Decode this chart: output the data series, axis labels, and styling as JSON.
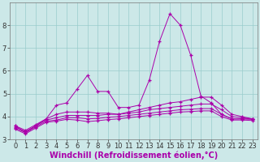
{
  "xlabel": "Windchill (Refroidissement éolien,°C)",
  "x": [
    0,
    1,
    2,
    3,
    4,
    5,
    6,
    7,
    8,
    9,
    10,
    11,
    12,
    13,
    14,
    15,
    16,
    17,
    18,
    19,
    20,
    21,
    22,
    23
  ],
  "series": [
    [
      3.6,
      3.3,
      3.6,
      3.9,
      4.5,
      4.6,
      5.2,
      5.8,
      5.1,
      5.1,
      4.4,
      4.4,
      4.5,
      5.6,
      7.3,
      8.5,
      8.0,
      6.7,
      4.9,
      4.6,
      4.1,
      3.9,
      3.9,
      3.9
    ],
    [
      3.6,
      3.4,
      3.65,
      3.9,
      4.1,
      4.2,
      4.2,
      4.2,
      4.15,
      4.15,
      4.1,
      4.2,
      4.3,
      4.4,
      4.5,
      4.6,
      4.65,
      4.75,
      4.85,
      4.85,
      4.5,
      4.1,
      4.0,
      3.9
    ],
    [
      3.55,
      3.35,
      3.6,
      3.85,
      3.95,
      4.05,
      4.05,
      4.05,
      4.05,
      4.1,
      4.1,
      4.15,
      4.2,
      4.3,
      4.35,
      4.4,
      4.45,
      4.5,
      4.55,
      4.55,
      4.3,
      4.0,
      3.95,
      3.9
    ],
    [
      3.5,
      3.3,
      3.55,
      3.8,
      3.85,
      3.95,
      3.95,
      3.9,
      3.92,
      3.97,
      4.0,
      4.05,
      4.1,
      4.15,
      4.2,
      4.25,
      4.3,
      4.32,
      4.35,
      4.35,
      4.1,
      3.9,
      3.9,
      3.88
    ],
    [
      3.45,
      3.25,
      3.5,
      3.75,
      3.8,
      3.88,
      3.85,
      3.78,
      3.82,
      3.87,
      3.9,
      3.95,
      4.0,
      4.05,
      4.1,
      4.15,
      4.2,
      4.22,
      4.25,
      4.25,
      4.0,
      3.85,
      3.85,
      3.83
    ]
  ],
  "bg_color": "#cce8e8",
  "line_color": "#aa00aa",
  "grid_color": "#99cccc",
  "ylim": [
    3.0,
    9.0
  ],
  "yticks": [
    3,
    4,
    5,
    6,
    7,
    8
  ],
  "xticks": [
    0,
    1,
    2,
    3,
    4,
    5,
    6,
    7,
    8,
    9,
    10,
    11,
    12,
    13,
    14,
    15,
    16,
    17,
    18,
    19,
    20,
    21,
    22,
    23
  ],
  "tick_fontsize": 6,
  "xlabel_fontsize": 7,
  "figwidth": 3.2,
  "figheight": 2.0,
  "dpi": 100
}
